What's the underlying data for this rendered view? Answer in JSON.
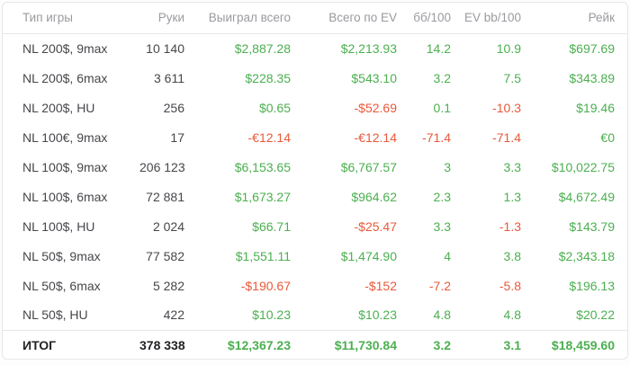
{
  "colors": {
    "positive": "#4caf50",
    "negative": "#e8593b",
    "header_text": "#9a9aa0",
    "body_text": "#47474c",
    "total_text": "#232327",
    "divider": "#e7e7eb"
  },
  "table": {
    "columns": [
      {
        "key": "game",
        "label": "Тип игры"
      },
      {
        "key": "hands",
        "label": "Руки"
      },
      {
        "key": "won",
        "label": "Выиграл всего"
      },
      {
        "key": "ev",
        "label": "Всего по EV"
      },
      {
        "key": "bb100",
        "label": "бб/100"
      },
      {
        "key": "evbb100",
        "label": "EV bb/100"
      },
      {
        "key": "rake",
        "label": "Рейк"
      }
    ],
    "rows": [
      {
        "game": "NL 200$, 9max",
        "hands": "10 140",
        "won": {
          "text": "$2,887.28",
          "tone": "pos"
        },
        "ev": {
          "text": "$2,213.93",
          "tone": "pos"
        },
        "bb100": {
          "text": "14.2",
          "tone": "pos"
        },
        "evbb100": {
          "text": "10.9",
          "tone": "pos"
        },
        "rake": {
          "text": "$697.69",
          "tone": "pos"
        }
      },
      {
        "game": "NL 200$, 6max",
        "hands": "3 611",
        "won": {
          "text": "$228.35",
          "tone": "pos"
        },
        "ev": {
          "text": "$543.10",
          "tone": "pos"
        },
        "bb100": {
          "text": "3.2",
          "tone": "pos"
        },
        "evbb100": {
          "text": "7.5",
          "tone": "pos"
        },
        "rake": {
          "text": "$343.89",
          "tone": "pos"
        }
      },
      {
        "game": "NL 200$, HU",
        "hands": "256",
        "won": {
          "text": "$0.65",
          "tone": "pos"
        },
        "ev": {
          "text": "-$52.69",
          "tone": "neg"
        },
        "bb100": {
          "text": "0.1",
          "tone": "pos"
        },
        "evbb100": {
          "text": "-10.3",
          "tone": "neg"
        },
        "rake": {
          "text": "$19.46",
          "tone": "pos"
        }
      },
      {
        "game": "NL 100€, 9max",
        "hands": "17",
        "won": {
          "text": "-€12.14",
          "tone": "neg"
        },
        "ev": {
          "text": "-€12.14",
          "tone": "neg"
        },
        "bb100": {
          "text": "-71.4",
          "tone": "neg"
        },
        "evbb100": {
          "text": "-71.4",
          "tone": "neg"
        },
        "rake": {
          "text": "€0",
          "tone": "pos"
        }
      },
      {
        "game": "NL 100$, 9max",
        "hands": "206 123",
        "won": {
          "text": "$6,153.65",
          "tone": "pos"
        },
        "ev": {
          "text": "$6,767.57",
          "tone": "pos"
        },
        "bb100": {
          "text": "3",
          "tone": "pos"
        },
        "evbb100": {
          "text": "3.3",
          "tone": "pos"
        },
        "rake": {
          "text": "$10,022.75",
          "tone": "pos"
        }
      },
      {
        "game": "NL 100$, 6max",
        "hands": "72 881",
        "won": {
          "text": "$1,673.27",
          "tone": "pos"
        },
        "ev": {
          "text": "$964.62",
          "tone": "pos"
        },
        "bb100": {
          "text": "2.3",
          "tone": "pos"
        },
        "evbb100": {
          "text": "1.3",
          "tone": "pos"
        },
        "rake": {
          "text": "$4,672.49",
          "tone": "pos"
        }
      },
      {
        "game": "NL 100$, HU",
        "hands": "2 024",
        "won": {
          "text": "$66.71",
          "tone": "pos"
        },
        "ev": {
          "text": "-$25.47",
          "tone": "neg"
        },
        "bb100": {
          "text": "3.3",
          "tone": "pos"
        },
        "evbb100": {
          "text": "-1.3",
          "tone": "neg"
        },
        "rake": {
          "text": "$143.79",
          "tone": "pos"
        }
      },
      {
        "game": "NL 50$, 9max",
        "hands": "77 582",
        "won": {
          "text": "$1,551.11",
          "tone": "pos"
        },
        "ev": {
          "text": "$1,474.90",
          "tone": "pos"
        },
        "bb100": {
          "text": "4",
          "tone": "pos"
        },
        "evbb100": {
          "text": "3.8",
          "tone": "pos"
        },
        "rake": {
          "text": "$2,343.18",
          "tone": "pos"
        }
      },
      {
        "game": "NL 50$, 6max",
        "hands": "5 282",
        "won": {
          "text": "-$190.67",
          "tone": "neg"
        },
        "ev": {
          "text": "-$152",
          "tone": "neg"
        },
        "bb100": {
          "text": "-7.2",
          "tone": "neg"
        },
        "evbb100": {
          "text": "-5.8",
          "tone": "neg"
        },
        "rake": {
          "text": "$196.13",
          "tone": "pos"
        }
      },
      {
        "game": "NL 50$, HU",
        "hands": "422",
        "won": {
          "text": "$10.23",
          "tone": "pos"
        },
        "ev": {
          "text": "$10.23",
          "tone": "pos"
        },
        "bb100": {
          "text": "4.8",
          "tone": "pos"
        },
        "evbb100": {
          "text": "4.8",
          "tone": "pos"
        },
        "rake": {
          "text": "$20.22",
          "tone": "pos"
        }
      }
    ],
    "total": {
      "game": "ИТОГ",
      "hands": "378 338",
      "won": {
        "text": "$12,367.23",
        "tone": "pos"
      },
      "ev": {
        "text": "$11,730.84",
        "tone": "pos"
      },
      "bb100": {
        "text": "3.2",
        "tone": "pos"
      },
      "evbb100": {
        "text": "3.1",
        "tone": "pos"
      },
      "rake": {
        "text": "$18,459.60",
        "tone": "pos"
      }
    }
  }
}
